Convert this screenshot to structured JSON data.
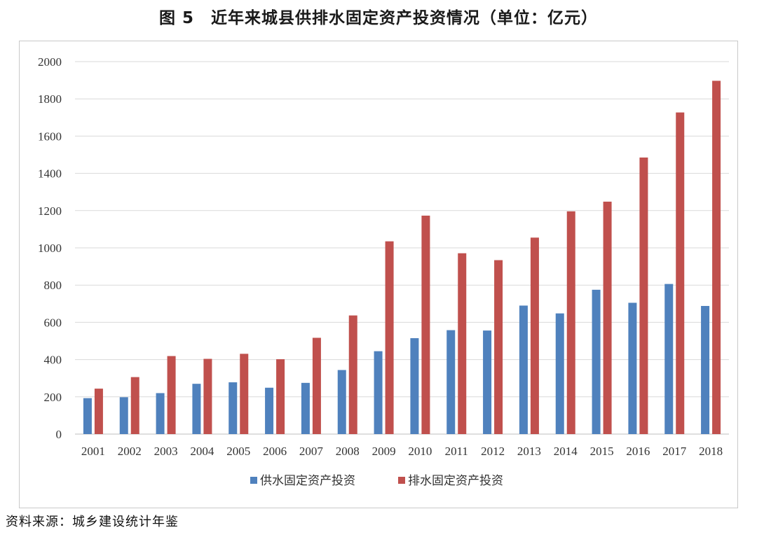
{
  "title": "图 5　近年来城县供排水固定资产投资情况（单位：亿元）",
  "source_note": "资料来源：城乡建设统计年鉴",
  "colors": {
    "supply": "#4f81bd",
    "drainage": "#c0504d",
    "grid": "#d9d9d9",
    "axis": "#bfbfbf"
  },
  "chart_data": {
    "type": "bar",
    "title": "图 5　近年来城县供排水固定资产投资情况（单位：亿元）",
    "xlabel": "",
    "ylabel": "",
    "ylim": [
      0,
      2000
    ],
    "yticks": [
      0,
      200,
      400,
      600,
      800,
      1000,
      1200,
      1400,
      1600,
      1800,
      2000
    ],
    "grid": true,
    "legend_position": "bottom",
    "categories": [
      "2001",
      "2002",
      "2003",
      "2004",
      "2005",
      "2006",
      "2007",
      "2008",
      "2009",
      "2010",
      "2011",
      "2012",
      "2013",
      "2014",
      "2015",
      "2016",
      "2017",
      "2018"
    ],
    "series": [
      {
        "name": "供水固定资产投资",
        "color": "#4f81bd",
        "values": [
          193,
          198,
          220,
          270,
          278,
          249,
          275,
          344,
          445,
          515,
          558,
          556,
          690,
          648,
          775,
          705,
          806,
          688
        ]
      },
      {
        "name": "排水固定资产投资",
        "color": "#c0504d",
        "values": [
          244,
          306,
          419,
          404,
          431,
          402,
          517,
          637,
          1035,
          1173,
          971,
          934,
          1055,
          1196,
          1248,
          1485,
          1727,
          1897
        ]
      }
    ]
  }
}
